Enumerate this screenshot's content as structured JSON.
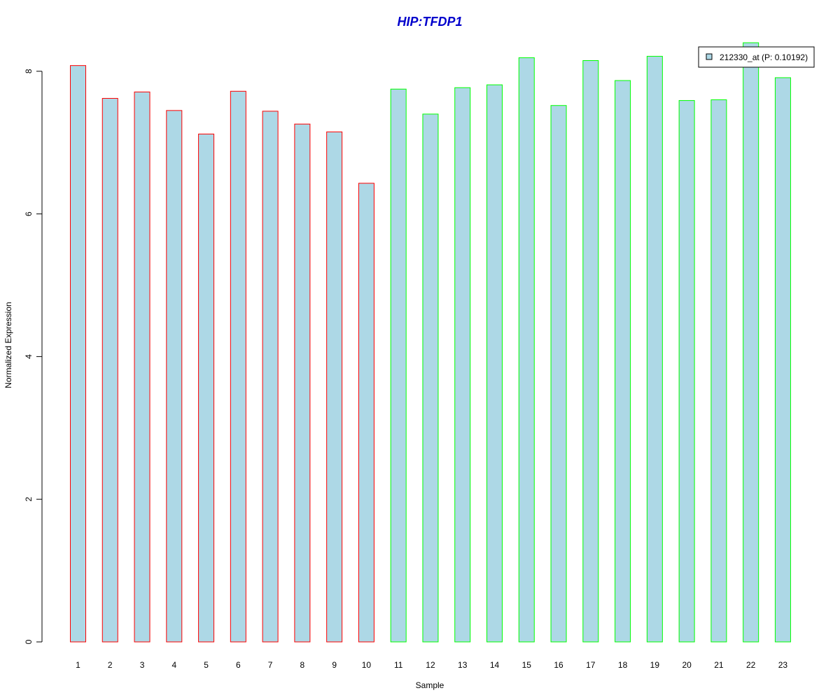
{
  "chart_data": {
    "type": "bar",
    "title": "HIP:TFDP1",
    "xlabel": "Sample",
    "ylabel": "Normalized Expression",
    "categories": [
      "1",
      "2",
      "3",
      "4",
      "5",
      "6",
      "7",
      "8",
      "9",
      "10",
      "11",
      "12",
      "13",
      "14",
      "15",
      "16",
      "17",
      "18",
      "19",
      "20",
      "21",
      "22",
      "23"
    ],
    "series": [
      {
        "name": "212330_at (P: 0.10192)",
        "values": [
          8.08,
          7.62,
          7.71,
          7.45,
          7.12,
          7.72,
          7.44,
          7.26,
          7.15,
          6.43,
          7.75,
          7.4,
          7.77,
          7.81,
          8.19,
          7.52,
          8.15,
          7.87,
          8.21,
          7.59,
          7.6,
          8.4,
          7.91
        ]
      }
    ],
    "group_border_colors": [
      "#ff0000",
      "#ff0000",
      "#ff0000",
      "#ff0000",
      "#ff0000",
      "#ff0000",
      "#ff0000",
      "#ff0000",
      "#ff0000",
      "#ff0000",
      "#00ff00",
      "#00ff00",
      "#00ff00",
      "#00ff00",
      "#00ff00",
      "#00ff00",
      "#00ff00",
      "#00ff00",
      "#00ff00",
      "#00ff00",
      "#00ff00",
      "#00ff00",
      "#00ff00"
    ],
    "bar_fill": "#add8e6",
    "title_color": "#0000cc",
    "yticks": [
      0,
      2,
      4,
      6,
      8
    ],
    "ylim": [
      0,
      8.4
    ],
    "grid": false,
    "legend_position": "top-right"
  }
}
